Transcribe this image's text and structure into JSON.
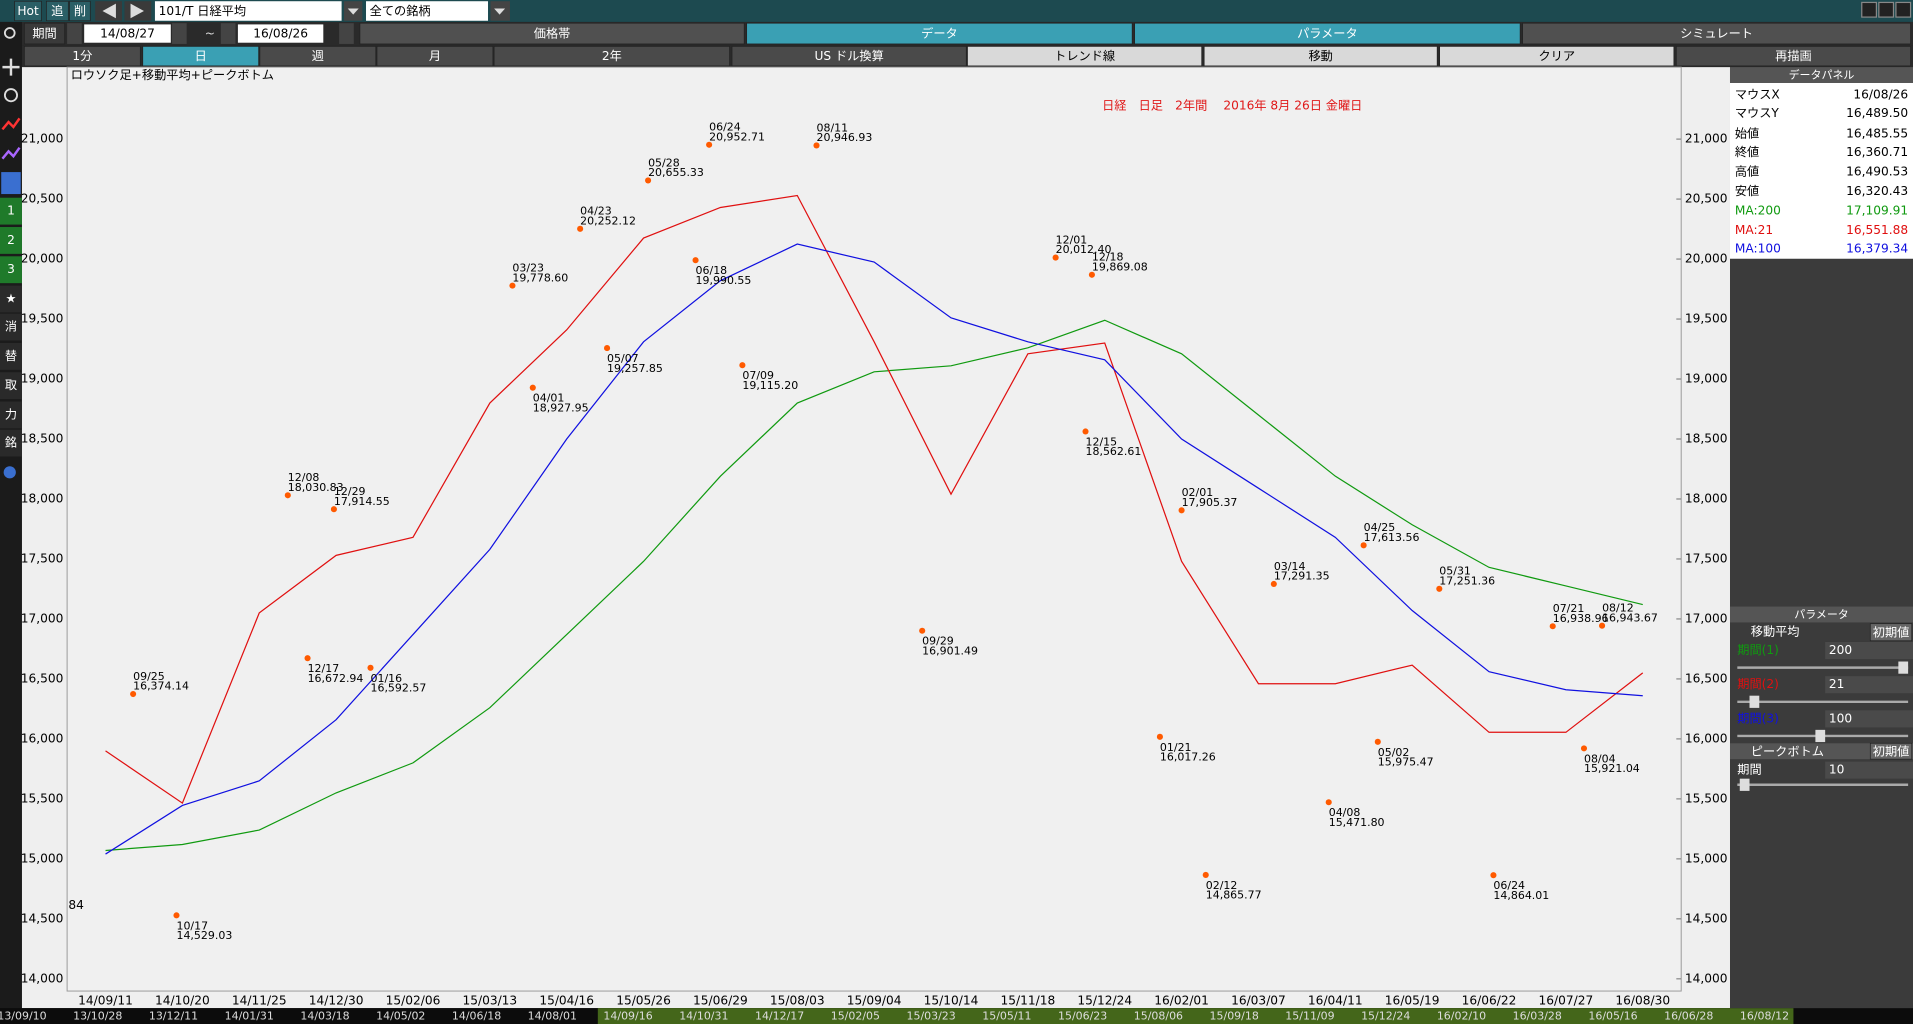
{
  "ui": {
    "top": {
      "buttons": [
        "Hot",
        "追",
        "削"
      ],
      "symbol": "101/T 日経平均",
      "universe": "全ての銘柄"
    },
    "period": {
      "label": "期間",
      "from": "14/08/27",
      "sep": "~",
      "to": "16/08/26"
    },
    "tabs": [
      "価格帯",
      "データ",
      "パラメータ",
      "シミュレート"
    ],
    "toolbar": [
      "1分",
      "日",
      "週",
      "月",
      "2年",
      "US ドル換算",
      "トレンド線",
      "移動",
      "クリア",
      "再描画"
    ],
    "side": [
      "1",
      "2",
      "3",
      "★",
      "消",
      "替",
      "取",
      "力",
      "銘"
    ],
    "overview": [
      "13/09/10",
      "13/10/28",
      "13/12/11",
      "14/01/31",
      "14/03/18",
      "14/05/02",
      "14/06/18",
      "14/08/01",
      "14/09/16",
      "14/10/31",
      "14/12/17",
      "15/02/05",
      "15/03/23",
      "15/05/11",
      "15/06/23",
      "15/08/06",
      "15/09/18",
      "15/11/09",
      "15/12/24",
      "16/02/10",
      "16/03/28",
      "16/05/16",
      "16/06/28",
      "16/08/12"
    ],
    "cut_label": "84",
    "data_panel": {
      "title": "データパネル",
      "rows": [
        [
          "マウスX",
          "16/08/26"
        ],
        [
          "マウスY",
          "16,489.50"
        ],
        [
          "始値",
          "16,485.55"
        ],
        [
          "終値",
          "16,360.71"
        ],
        [
          "高値",
          "16,490.53"
        ],
        [
          "安値",
          "16,320.43"
        ]
      ],
      "ma_values": [
        "17,109.91",
        "16,551.88",
        "16,379.34"
      ]
    },
    "param_panel": {
      "title": "パラメータ",
      "ma": "移動平均",
      "reset": "初期値",
      "periods": [
        [
          "期間(1)",
          "200"
        ],
        [
          "期間(2)",
          "21"
        ],
        [
          "期間(3)",
          "100"
        ]
      ],
      "peak": "ピークボトム",
      "peak_period": [
        "期間",
        "10"
      ]
    }
  },
  "chart_data": {
    "type": "line",
    "title": "日経　日足　2年間　 2016年 8月 26日 金曜日",
    "subtitle": "ロウソク足+移動平均+ピークボトム",
    "categories": [
      "14/09/11",
      "14/10/20",
      "14/11/25",
      "14/12/30",
      "15/02/06",
      "15/03/13",
      "15/04/16",
      "15/05/26",
      "15/06/29",
      "15/08/03",
      "15/09/04",
      "15/10/14",
      "15/11/18",
      "15/12/24",
      "16/02/01",
      "16/03/07",
      "16/04/11",
      "16/05/19",
      "16/06/22",
      "16/07/27",
      "16/08/30"
    ],
    "series": [
      {
        "name": "MA:200",
        "color": "#109a10",
        "values": [
          15070,
          15120,
          15240,
          15550,
          15800,
          16260,
          16870,
          17480,
          18190,
          18800,
          19060,
          19110,
          19260,
          19490,
          19210,
          18700,
          18190,
          17785,
          17430,
          17275,
          17120
        ]
      },
      {
        "name": "MA:21",
        "color": "#e01010",
        "values": [
          15900,
          15465,
          17050,
          17530,
          17680,
          18800,
          19410,
          20175,
          20430,
          20530,
          19310,
          18040,
          19210,
          19300,
          17480,
          16460,
          16460,
          16615,
          16055,
          16055,
          16550
        ]
      },
      {
        "name": "MA:100",
        "color": "#1010e0",
        "values": [
          15040,
          15445,
          15650,
          16160,
          16870,
          17580,
          18500,
          19310,
          19820,
          20125,
          19975,
          19510,
          19310,
          19160,
          18500,
          18090,
          17680,
          17070,
          16560,
          16410,
          16360
        ]
      }
    ],
    "ylim": [
      13898,
      21600
    ],
    "yticks": [
      {
        "value": 14000,
        "label": "14,000"
      },
      {
        "value": 14500,
        "label": "14,500"
      },
      {
        "value": 15000,
        "label": "15,000"
      },
      {
        "value": 15500,
        "label": "15,500"
      },
      {
        "value": 16000,
        "label": "16,000"
      },
      {
        "value": 16500,
        "label": "16,500"
      },
      {
        "value": 17000,
        "label": "17,000"
      },
      {
        "value": 17500,
        "label": "17,500"
      },
      {
        "value": 18000,
        "label": "18,000"
      },
      {
        "value": 18500,
        "label": "18,500"
      },
      {
        "value": 19000,
        "label": "19,000"
      },
      {
        "value": 19500,
        "label": "19,500"
      },
      {
        "value": 20000,
        "label": "20,000"
      },
      {
        "value": 20500,
        "label": "20,500"
      },
      {
        "value": 21000,
        "label": "21,000"
      }
    ],
    "peaks": {
      "dates": [
        "09/25",
        "12/08",
        "12/29",
        "03/23",
        "04/23",
        "05/28",
        "06/24",
        "08/11",
        "12/01",
        "12/18",
        "02/01",
        "03/14",
        "04/25",
        "05/31",
        "07/21",
        "08/12"
      ],
      "values": [
        16374.14,
        18030.83,
        17914.55,
        19778.6,
        20252.12,
        20655.33,
        20952.71,
        20946.93,
        20012.4,
        19869.08,
        17905.37,
        17291.35,
        17613.56,
        17251.36,
        16938.96,
        16943.67
      ],
      "value_labels": [
        "16,374.14",
        "18,030.83",
        "17,914.55",
        "19,778.60",
        "20,252.12",
        "20,655.33",
        "20,952.71",
        "20,946.93",
        "20,012.40",
        "19,869.08",
        "17,905.37",
        "17,291.35",
        "17,613.56",
        "17,251.36",
        "16,938.96",
        "16,943.67"
      ]
    },
    "bottoms": {
      "dates": [
        "10/17",
        "12/17",
        "01/16",
        "04/01",
        "05/07",
        "06/18",
        "07/09",
        "09/29",
        "12/15",
        "01/21",
        "02/12",
        "04/08",
        "05/02",
        "06/24",
        "08/04"
      ],
      "values": [
        14529.03,
        16672.94,
        16592.57,
        18927.95,
        19257.85,
        19990.55,
        19115.2,
        16901.49,
        18562.61,
        16017.26,
        14865.77,
        15471.8,
        15975.47,
        14864.01,
        15921.04
      ],
      "value_labels": [
        "14,529.03",
        "16,672.94",
        "16,592.57",
        "18,927.95",
        "19,257.85",
        "19,990.55",
        "19,115.20",
        "16,901.49",
        "18,562.61",
        "16,017.26",
        "14,865.77",
        "15,471.80",
        "15,975.47",
        "14,864.01",
        "15,921.04"
      ]
    },
    "marker_color": "#ff5a00"
  }
}
